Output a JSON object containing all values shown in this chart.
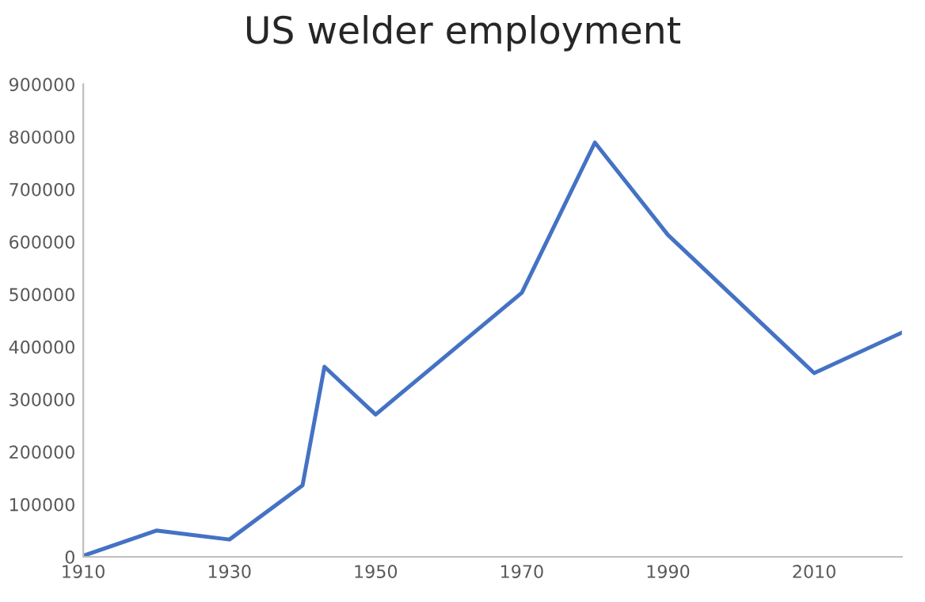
{
  "chart_data": {
    "type": "line",
    "title": "US welder employment",
    "x": [
      1910,
      1920,
      1930,
      1940,
      1943,
      1950,
      1970,
      1980,
      1990,
      2010,
      2022
    ],
    "series": [
      {
        "color": "#4472c4",
        "values": [
          2000,
          50000,
          33000,
          136000,
          362000,
          271000,
          503000,
          789000,
          613000,
          350000,
          427000
        ]
      }
    ],
    "xlim": [
      1910,
      2022
    ],
    "xticks": [
      1910,
      1930,
      1950,
      1970,
      1990,
      2010
    ],
    "ylim": [
      0,
      900000
    ],
    "yticks": [
      0,
      100000,
      200000,
      300000,
      400000,
      500000,
      600000,
      700000,
      800000,
      900000
    ],
    "grid": false,
    "marker": "none",
    "line_style": "solid"
  }
}
